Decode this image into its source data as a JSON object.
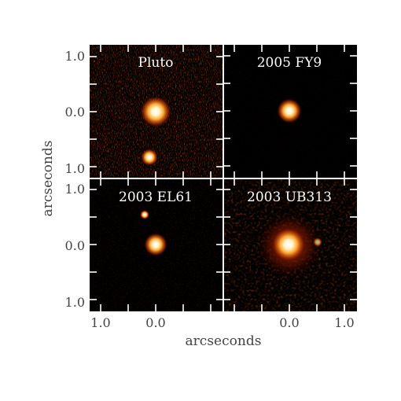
{
  "panels": [
    {
      "id": "pluto",
      "title": "Pluto",
      "y_ticks": [
        "1.0",
        "0.0",
        "1.0"
      ],
      "x_ticks": []
    },
    {
      "id": "fy9",
      "title": "2005 FY9",
      "y_ticks": [],
      "x_ticks": []
    },
    {
      "id": "el61",
      "title": "2003 EL61",
      "y_ticks": [
        "1.0",
        "0.0",
        "1.0"
      ],
      "x_ticks": [
        "1.0",
        "0.0"
      ]
    },
    {
      "id": "ub313",
      "title": "2003 UB313",
      "y_ticks": [],
      "x_ticks": [
        "0.0",
        "1.0"
      ]
    }
  ],
  "axes": {
    "x_label": "arcseconds",
    "y_label": "arcseconds"
  },
  "colors": {
    "background": "#000000",
    "tick": "#ffffff",
    "label": "#444444",
    "glow_core": "#fffbe8",
    "glow_mid": "#ffb040",
    "glow_outer": "#8a1c00"
  }
}
